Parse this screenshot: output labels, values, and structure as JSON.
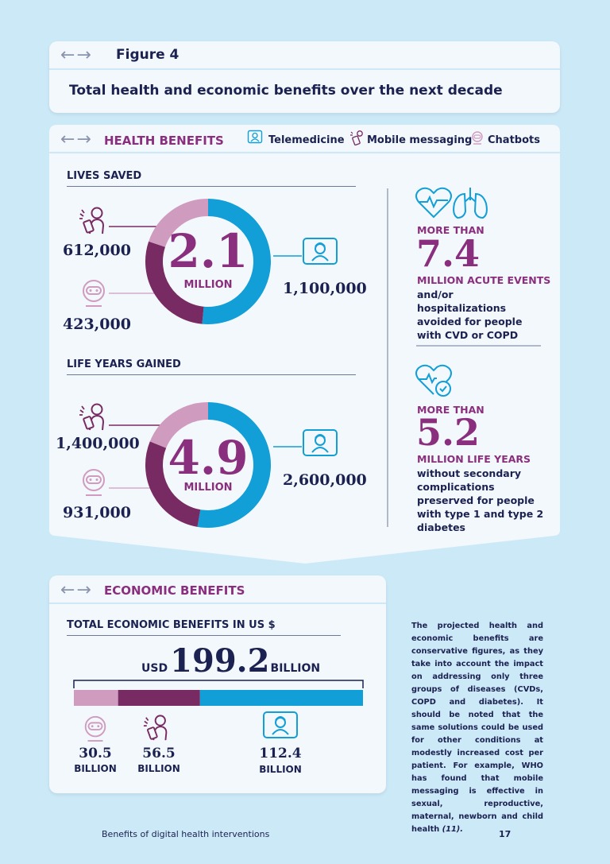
{
  "figure": {
    "label": "Figure 4",
    "title": "Total health and economic benefits over the next decade"
  },
  "health": {
    "header": "HEALTH BENEFITS",
    "legend": [
      "Telemedicine",
      "Mobile messaging",
      "Chatbots"
    ],
    "lives_saved": {
      "heading": "LIVES SAVED",
      "total": "2.1",
      "unit": "MILLION",
      "mobile": "612,000",
      "chatbots": "423,000",
      "telemedicine": "1,100,000"
    },
    "life_years": {
      "heading": "LIFE YEARS GAINED",
      "total": "4.9",
      "unit": "MILLION",
      "mobile": "1,400,000",
      "chatbots": "931,000",
      "telemedicine": "2,600,000"
    },
    "acute": {
      "more_than": "MORE THAN",
      "value": "7.4",
      "unit": "MILLION ACUTE EVENTS",
      "desc": "and/or hospitalizations avoided for people with CVD or COPD"
    },
    "diabetes": {
      "more_than": "MORE THAN",
      "value": "5.2",
      "unit": "MILLION LIFE YEARS",
      "desc": "without secondary complications preserved for people with type 1 and type 2 diabetes"
    }
  },
  "economic": {
    "header": "ECONOMIC BENEFITS",
    "heading": "TOTAL ECONOMIC BENEFITS IN US $",
    "usd": "USD",
    "total": "199.2",
    "billion": "BILLION",
    "chatbots": "30.5",
    "mobile": "56.5",
    "telemedicine": "112.4",
    "unit": "BILLION"
  },
  "note": {
    "text": "The projected health and economic benefits are conservative figures, as they take into account the impact on addressing only three groups of diseases (CVDs, COPD and diabetes). It should be noted that the same solutions could be used for other conditions at modestly increased cost per patient. For example, WHO has found that mobile messaging is effective in sexual, reproductive, maternal, newborn and child health",
    "ref": "(11)."
  },
  "footer": {
    "title": "Benefits of digital health interventions",
    "page": "17"
  },
  "colors": {
    "telemedicine": "#129ed6",
    "mobile": "#782a62",
    "chatbots": "#cf9bbf",
    "purple_text": "#8a2e7e",
    "navy_text": "#1b2150"
  },
  "chart_data": [
    {
      "type": "pie",
      "title": "LIVES SAVED",
      "categories": [
        "Telemedicine",
        "Mobile messaging",
        "Chatbots"
      ],
      "values": [
        1100000,
        612000,
        423000
      ]
    },
    {
      "type": "pie",
      "title": "LIFE YEARS GAINED",
      "categories": [
        "Telemedicine",
        "Mobile messaging",
        "Chatbots"
      ],
      "values": [
        2600000,
        1400000,
        931000
      ]
    },
    {
      "type": "bar",
      "title": "TOTAL ECONOMIC BENEFITS IN US $",
      "categories": [
        "Chatbots",
        "Mobile messaging",
        "Telemedicine"
      ],
      "values": [
        30.5,
        56.5,
        112.4
      ]
    }
  ]
}
